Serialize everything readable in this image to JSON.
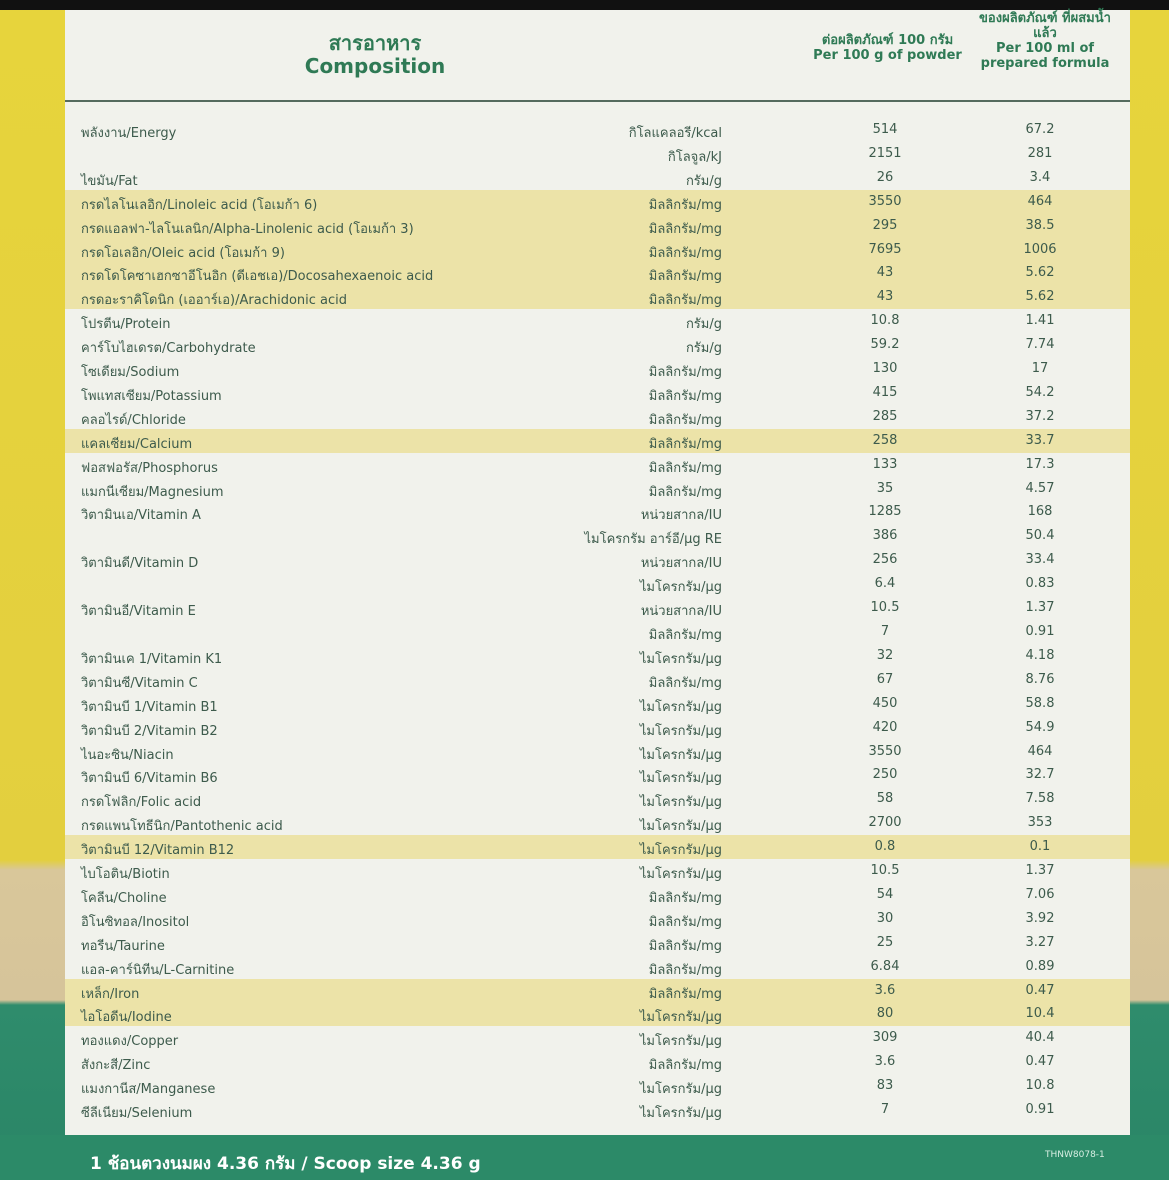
{
  "header": {
    "composition_th": "สารอาหาร",
    "composition_en": "Composition",
    "per_g_th": "ต่อผลิตภัณฑ์ 100 กรัม",
    "per_g_en": "Per 100 g of powder",
    "per_ml_th": "ของผลิตภัณฑ์ ที่ผสมน้ำแล้ว",
    "per_ml_en": "Per 100 ml of prepared formula"
  },
  "table": {
    "rows": [
      {
        "name": "พลังงาน/Energy",
        "unit": "กิโลแคลอรี/kcal",
        "per_100g": 514,
        "per_100ml": 67.2
      },
      {
        "name": null,
        "unit": "กิโลจูล/kJ",
        "per_100g": 2151,
        "per_100ml": 281
      },
      {
        "name": "ไขมัน/Fat",
        "unit": "กรัม/g",
        "per_100g": 26,
        "per_100ml": 3.4
      },
      {
        "name": "กรดไลโนเลอิก/Linoleic acid (โอเมก้า 6)",
        "unit": "มิลลิกรัม/mg",
        "per_100g": 3550,
        "per_100ml": 464,
        "highlight": true
      },
      {
        "name": "กรดแอลฟา-ไลโนเลนิก/Alpha-Linolenic acid (โอเมก้า 3)",
        "unit": "มิลลิกรัม/mg",
        "per_100g": 295,
        "per_100ml": 38.5,
        "highlight": true
      },
      {
        "name": "กรดโอเลอิก/Oleic acid (โอเมก้า 9)",
        "unit": "มิลลิกรัม/mg",
        "per_100g": 7695,
        "per_100ml": 1006,
        "highlight": true
      },
      {
        "name": "กรดโดโคซาเฮกซาอีโนอิก (ดีเอชเอ)/Docosahexaenoic acid",
        "unit": "มิลลิกรัม/mg",
        "per_100g": 43,
        "per_100ml": 5.62,
        "highlight": true
      },
      {
        "name": "กรดอะราคิโดนิก (เออาร์เอ)/Arachidonic acid",
        "unit": "มิลลิกรัม/mg",
        "per_100g": 43,
        "per_100ml": 5.62,
        "highlight": true
      },
      {
        "name": "โปรตีน/Protein",
        "unit": "กรัม/g",
        "per_100g": 10.8,
        "per_100ml": 1.41
      },
      {
        "name": "คาร์โบไฮเดรต/Carbohydrate",
        "unit": "กรัม/g",
        "per_100g": 59.2,
        "per_100ml": 7.74
      },
      {
        "name": "โซเดียม/Sodium",
        "unit": "มิลลิกรัม/mg",
        "per_100g": 130,
        "per_100ml": 17
      },
      {
        "name": "โพแทสเซียม/Potassium",
        "unit": "มิลลิกรัม/mg",
        "per_100g": 415,
        "per_100ml": 54.2
      },
      {
        "name": "คลอไรด์/Chloride",
        "unit": "มิลลิกรัม/mg",
        "per_100g": 285,
        "per_100ml": 37.2
      },
      {
        "name": "แคลเซียม/Calcium",
        "unit": "มิลลิกรัม/mg",
        "per_100g": 258,
        "per_100ml": 33.7,
        "highlight": true
      },
      {
        "name": "ฟอสฟอรัส/Phosphorus",
        "unit": "มิลลิกรัม/mg",
        "per_100g": 133,
        "per_100ml": 17.3
      },
      {
        "name": "แมกนีเซียม/Magnesium",
        "unit": "มิลลิกรัม/mg",
        "per_100g": 35,
        "per_100ml": 4.57
      },
      {
        "name": "วิตามินเอ/Vitamin A",
        "unit": "หน่วยสากล/IU",
        "per_100g": 1285,
        "per_100ml": 168
      },
      {
        "name": null,
        "unit": "ไมโครกรัม อาร์อี/µg RE",
        "per_100g": 386,
        "per_100ml": 50.4
      },
      {
        "name": "วิตามินดี/Vitamin D",
        "unit": "หน่วยสากล/IU",
        "per_100g": 256,
        "per_100ml": 33.4
      },
      {
        "name": null,
        "unit": "ไมโครกรัม/µg",
        "per_100g": 6.4,
        "per_100ml": 0.83
      },
      {
        "name": "วิตามินอี/Vitamin E",
        "unit": "หน่วยสากล/IU",
        "per_100g": 10.5,
        "per_100ml": 1.37
      },
      {
        "name": null,
        "unit": "มิลลิกรัม/mg",
        "per_100g": 7,
        "per_100ml": 0.91
      },
      {
        "name": "วิตามินเค 1/Vitamin K1",
        "unit": "ไมโครกรัม/µg",
        "per_100g": 32,
        "per_100ml": 4.18
      },
      {
        "name": "วิตามินซี/Vitamin C",
        "unit": "มิลลิกรัม/mg",
        "per_100g": 67,
        "per_100ml": 8.76
      },
      {
        "name": "วิตามินบี 1/Vitamin B1",
        "unit": "ไมโครกรัม/µg",
        "per_100g": 450,
        "per_100ml": 58.8
      },
      {
        "name": "วิตามินบี 2/Vitamin B2",
        "unit": "ไมโครกรัม/µg",
        "per_100g": 420,
        "per_100ml": 54.9
      },
      {
        "name": "ไนอะซิน/Niacin",
        "unit": "ไมโครกรัม/µg",
        "per_100g": 3550,
        "per_100ml": 464
      },
      {
        "name": "วิตามินบี 6/Vitamin B6",
        "unit": "ไมโครกรัม/µg",
        "per_100g": 250,
        "per_100ml": 32.7
      },
      {
        "name": "กรดโฟลิก/Folic acid",
        "unit": "ไมโครกรัม/µg",
        "per_100g": 58,
        "per_100ml": 7.58
      },
      {
        "name": "กรดแพนโทธีนิก/Pantothenic acid",
        "unit": "ไมโครกรัม/µg",
        "per_100g": 2700,
        "per_100ml": 353
      },
      {
        "name": "วิตามินบี 12/Vitamin B12",
        "unit": "ไมโครกรัม/µg",
        "per_100g": 0.8,
        "per_100ml": 0.1,
        "highlight": true
      },
      {
        "name": "ไบโอติน/Biotin",
        "unit": "ไมโครกรัม/µg",
        "per_100g": 10.5,
        "per_100ml": 1.37
      },
      {
        "name": "โคลีน/Choline",
        "unit": "มิลลิกรัม/mg",
        "per_100g": 54,
        "per_100ml": 7.06
      },
      {
        "name": "อิโนซิทอล/Inositol",
        "unit": "มิลลิกรัม/mg",
        "per_100g": 30,
        "per_100ml": 3.92
      },
      {
        "name": "ทอรีน/Taurine",
        "unit": "มิลลิกรัม/mg",
        "per_100g": 25,
        "per_100ml": 3.27
      },
      {
        "name": "แอล-คาร์นิทีน/L-Carnitine",
        "unit": "มิลลิกรัม/mg",
        "per_100g": 6.84,
        "per_100ml": 0.89
      },
      {
        "name": "เหล็ก/Iron",
        "unit": "มิลลิกรัม/mg",
        "per_100g": 3.6,
        "per_100ml": 0.47,
        "highlight": true
      },
      {
        "name": "ไอโอดีน/Iodine",
        "unit": "ไมโครกรัม/µg",
        "per_100g": 80,
        "per_100ml": 10.4,
        "highlight": true
      },
      {
        "name": "ทองแดง/Copper",
        "unit": "ไมโครกรัม/µg",
        "per_100g": 309,
        "per_100ml": 40.4
      },
      {
        "name": "สังกะสี/Zinc",
        "unit": "มิลลิกรัม/mg",
        "per_100g": 3.6,
        "per_100ml": 0.47
      },
      {
        "name": "แมงกานีส/Manganese",
        "unit": "ไมโครกรัม/µg",
        "per_100g": 83,
        "per_100ml": 10.8
      },
      {
        "name": "ซีลีเนียม/Selenium",
        "unit": "ไมโครกรัม/µg",
        "per_100g": 7,
        "per_100ml": 0.91
      }
    ]
  },
  "footer": {
    "scoop": "1 ช้อนตวงนมผง 4.36 กรัม / Scoop size 4.36 g",
    "code": "THNW8078-1"
  }
}
